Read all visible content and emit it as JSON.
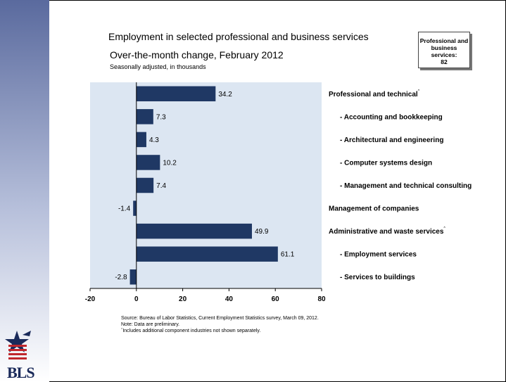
{
  "header": {
    "title": "Employment in selected professional and business services",
    "subtitle": "Over-the-month change, February 2012",
    "unit_note": "Seasonally adjusted, in thousands"
  },
  "summary_box": {
    "line1": "Professional and",
    "line2": "business services:",
    "value": "82"
  },
  "chart_data": {
    "type": "bar",
    "orientation": "horizontal",
    "categories": [
      "Professional and technical",
      "- Accounting and bookkeeping",
      "- Architectural and engineering",
      "- Computer systems design",
      "- Management and technical consulting",
      "Management of companies",
      "Administrative and waste services",
      "- Employment services",
      "- Services to buildings"
    ],
    "footnote_marked": [
      true,
      false,
      false,
      false,
      false,
      false,
      true,
      false,
      false
    ],
    "values": [
      34.2,
      7.3,
      4.3,
      10.2,
      7.4,
      -1.4,
      49.9,
      61.1,
      -2.8
    ],
    "value_labels": [
      "34.2",
      "7.3",
      "4.3",
      "10.2",
      "7.4",
      "-1.4",
      "49.9",
      "61.1",
      "-2.8"
    ],
    "xlim": [
      -20,
      80
    ],
    "xticks": [
      -20,
      0,
      20,
      40,
      60,
      80
    ],
    "bar_color": "#1f3864",
    "plot_background": "#dce6f2",
    "grid": false
  },
  "footnotes": {
    "source": "Source: Bureau of Labor Statistics, Current Employment Statistics survey, March 09, 2012.",
    "note": "Note: Data are preliminary.",
    "marker_note": "Includes additional component industries not shown separately."
  },
  "logo": {
    "text": "BLS"
  },
  "colors": {
    "bar": "#1f3864",
    "plot_bg": "#dce6f2",
    "band_top": "#5a6a9e",
    "logo_red": "#c0272d",
    "logo_blue": "#1a2a5a"
  }
}
